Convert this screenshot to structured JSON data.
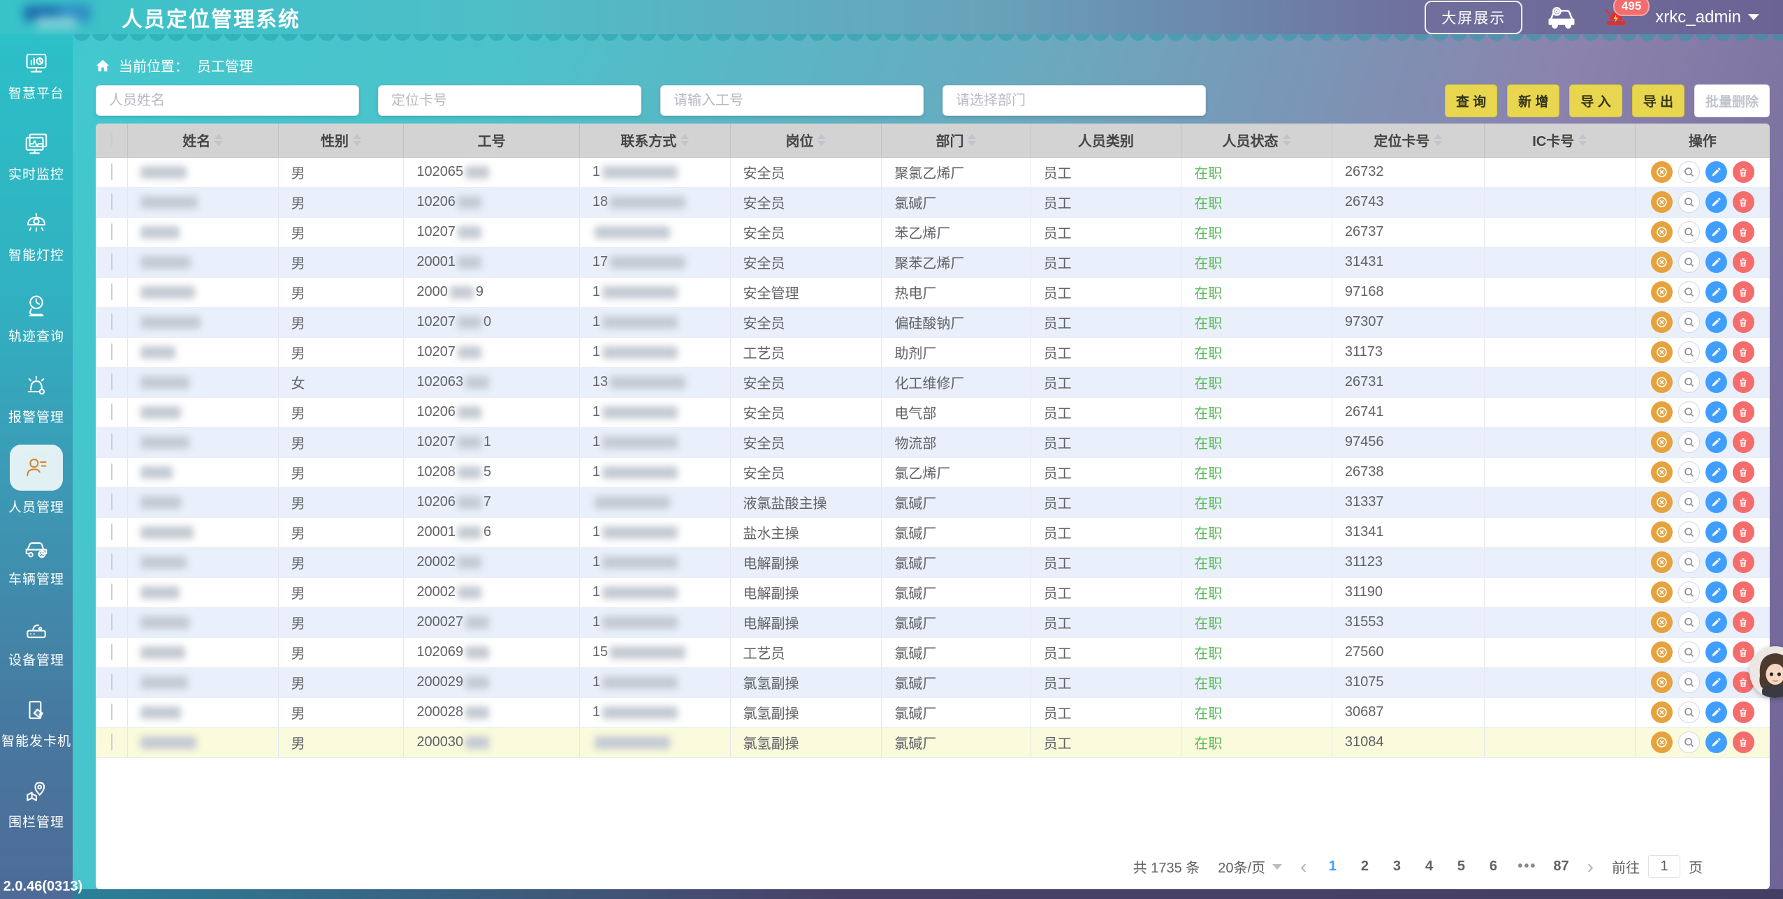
{
  "header": {
    "title": "人员定位管理系统",
    "big_screen_label": "大屏展示",
    "notification_count": "495",
    "username": "xrkc_admin"
  },
  "sidebar": {
    "items": [
      {
        "label": "智慧平台",
        "icon": "smart-platform-icon"
      },
      {
        "label": "实时监控",
        "icon": "realtime-monitor-icon"
      },
      {
        "label": "智能灯控",
        "icon": "smart-light-icon"
      },
      {
        "label": "轨迹查询",
        "icon": "trajectory-query-icon"
      },
      {
        "label": "报警管理",
        "icon": "alarm-manage-icon"
      },
      {
        "label": "人员管理",
        "icon": "person-manage-icon"
      },
      {
        "label": "车辆管理",
        "icon": "vehicle-manage-icon"
      },
      {
        "label": "设备管理",
        "icon": "device-manage-icon"
      },
      {
        "label": "智能发卡机",
        "icon": "card-dispenser-icon"
      },
      {
        "label": "围栏管理",
        "icon": "fence-manage-icon"
      }
    ],
    "active_index": 5,
    "version": "V 2.0.46(0313)"
  },
  "breadcrumb": {
    "prefix": "当前位置：",
    "current": "员工管理"
  },
  "filters": {
    "name_placeholder": "人员姓名",
    "card_placeholder": "定位卡号",
    "empno_placeholder": "请输入工号",
    "dept_placeholder": "请选择部门"
  },
  "actions": {
    "search": "查 询",
    "add": "新 增",
    "import": "导 入",
    "export": "导 出",
    "batch_delete": "批量删除"
  },
  "table": {
    "columns": [
      {
        "label": "姓名",
        "sortable": true
      },
      {
        "label": "性别",
        "sortable": true
      },
      {
        "label": "工号",
        "sortable": false
      },
      {
        "label": "联系方式",
        "sortable": true
      },
      {
        "label": "岗位",
        "sortable": true
      },
      {
        "label": "部门",
        "sortable": true
      },
      {
        "label": "人员类别",
        "sortable": false
      },
      {
        "label": "人员状态",
        "sortable": true
      },
      {
        "label": "定位卡号",
        "sortable": true
      },
      {
        "label": "IC卡号",
        "sortable": true
      },
      {
        "label": "操作",
        "sortable": false
      }
    ],
    "rows": [
      {
        "gender": "男",
        "emp_prefix": "102065",
        "emp_suffix": "",
        "phone_prefix": "1",
        "position": "安全员",
        "department": "聚氯乙烯厂",
        "category": "员工",
        "status": "在职",
        "card": "26732",
        "ic": ""
      },
      {
        "gender": "男",
        "emp_prefix": "10206",
        "emp_suffix": "",
        "phone_prefix": "18",
        "position": "安全员",
        "department": "氯碱厂",
        "category": "员工",
        "status": "在职",
        "card": "26743",
        "ic": ""
      },
      {
        "gender": "男",
        "emp_prefix": "10207",
        "emp_suffix": "",
        "phone_prefix": "",
        "position": "安全员",
        "department": "苯乙烯厂",
        "category": "员工",
        "status": "在职",
        "card": "26737",
        "ic": ""
      },
      {
        "gender": "男",
        "emp_prefix": "20001",
        "emp_suffix": "",
        "phone_prefix": "17",
        "position": "安全员",
        "department": "聚苯乙烯厂",
        "category": "员工",
        "status": "在职",
        "card": "31431",
        "ic": ""
      },
      {
        "gender": "男",
        "emp_prefix": "2000",
        "emp_suffix": "9",
        "phone_prefix": "1",
        "position": "安全管理",
        "department": "热电厂",
        "category": "员工",
        "status": "在职",
        "card": "97168",
        "ic": ""
      },
      {
        "gender": "男",
        "emp_prefix": "10207",
        "emp_suffix": "0",
        "phone_prefix": "1",
        "position": "安全员",
        "department": "偏硅酸钠厂",
        "category": "员工",
        "status": "在职",
        "card": "97307",
        "ic": ""
      },
      {
        "gender": "男",
        "emp_prefix": "10207",
        "emp_suffix": "",
        "phone_prefix": "1",
        "position": "工艺员",
        "department": "助剂厂",
        "category": "员工",
        "status": "在职",
        "card": "31173",
        "ic": ""
      },
      {
        "gender": "女",
        "emp_prefix": "102063",
        "emp_suffix": "",
        "phone_prefix": "13",
        "position": "安全员",
        "department": "化工维修厂",
        "category": "员工",
        "status": "在职",
        "card": "26731",
        "ic": ""
      },
      {
        "gender": "男",
        "emp_prefix": "10206",
        "emp_suffix": "",
        "phone_prefix": "1",
        "position": "安全员",
        "department": "电气部",
        "category": "员工",
        "status": "在职",
        "card": "26741",
        "ic": ""
      },
      {
        "gender": "男",
        "emp_prefix": "10207",
        "emp_suffix": "1",
        "phone_prefix": "1",
        "position": "安全员",
        "department": "物流部",
        "category": "员工",
        "status": "在职",
        "card": "97456",
        "ic": ""
      },
      {
        "gender": "男",
        "emp_prefix": "10208",
        "emp_suffix": "5",
        "phone_prefix": "1",
        "position": "安全员",
        "department": "氯乙烯厂",
        "category": "员工",
        "status": "在职",
        "card": "26738",
        "ic": ""
      },
      {
        "gender": "男",
        "emp_prefix": "10206",
        "emp_suffix": "7",
        "phone_prefix": "",
        "position": "液氯盐酸主操",
        "department": "氯碱厂",
        "category": "员工",
        "status": "在职",
        "card": "31337",
        "ic": ""
      },
      {
        "gender": "男",
        "emp_prefix": "20001",
        "emp_suffix": "6",
        "phone_prefix": "1",
        "position": "盐水主操",
        "department": "氯碱厂",
        "category": "员工",
        "status": "在职",
        "card": "31341",
        "ic": ""
      },
      {
        "gender": "男",
        "emp_prefix": "20002",
        "emp_suffix": "",
        "phone_prefix": "1",
        "position": "电解副操",
        "department": "氯碱厂",
        "category": "员工",
        "status": "在职",
        "card": "31123",
        "ic": ""
      },
      {
        "gender": "男",
        "emp_prefix": "20002",
        "emp_suffix": "",
        "phone_prefix": "1",
        "position": "电解副操",
        "department": "氯碱厂",
        "category": "员工",
        "status": "在职",
        "card": "31190",
        "ic": ""
      },
      {
        "gender": "男",
        "emp_prefix": "200027",
        "emp_suffix": "",
        "phone_prefix": "1",
        "position": "电解副操",
        "department": "氯碱厂",
        "category": "员工",
        "status": "在职",
        "card": "31553",
        "ic": ""
      },
      {
        "gender": "男",
        "emp_prefix": "102069",
        "emp_suffix": "",
        "phone_prefix": "15",
        "position": "工艺员",
        "department": "氯碱厂",
        "category": "员工",
        "status": "在职",
        "card": "27560",
        "ic": ""
      },
      {
        "gender": "男",
        "emp_prefix": "200029",
        "emp_suffix": "",
        "phone_prefix": "1",
        "position": "氯氢副操",
        "department": "氯碱厂",
        "category": "员工",
        "status": "在职",
        "card": "31075",
        "ic": ""
      },
      {
        "gender": "男",
        "emp_prefix": "200028",
        "emp_suffix": "",
        "phone_prefix": "1",
        "position": "氯氢副操",
        "department": "氯碱厂",
        "category": "员工",
        "status": "在职",
        "card": "30687",
        "ic": ""
      },
      {
        "gender": "男",
        "emp_prefix": "200030",
        "emp_suffix": "",
        "phone_prefix": "",
        "position": "氯氢副操",
        "department": "氯碱厂",
        "category": "员工",
        "status": "在职",
        "card": "31084",
        "ic": ""
      }
    ]
  },
  "pagination": {
    "total": "共 1735 条",
    "page_size": "20条/页",
    "pages": [
      "1",
      "2",
      "3",
      "4",
      "5",
      "6",
      "•••",
      "87"
    ],
    "active_page": "1",
    "goto_label": "前往",
    "goto_value": "1",
    "page_unit": "页"
  },
  "colors": {
    "accent_teal": "#3ac3c9",
    "accent_purple": "#6b6394",
    "button_yellow": "#e8d64f",
    "status_green": "#5eb95e",
    "active_page_blue": "#409eff",
    "op_orange": "#e6a23c",
    "op_blue": "#409eff",
    "op_red": "#f56c6c",
    "badge_red": "#f56c6c",
    "row_alt_blue": "#e9f0fb",
    "row_highlight_yellow": "#fafadc"
  }
}
